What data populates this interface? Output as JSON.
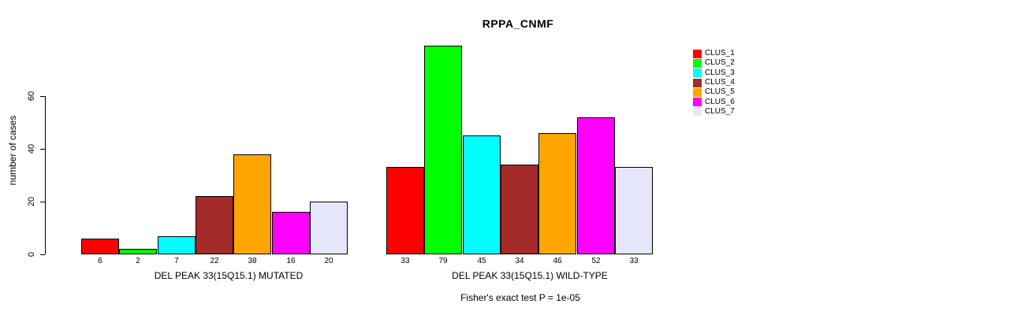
{
  "chart_data": {
    "type": "bar",
    "title": "RPPA_CNMF",
    "ylabel": "number of cases",
    "yticks": [
      0,
      20,
      40,
      60
    ],
    "ylim": [
      0,
      60
    ],
    "grid": false,
    "legend_position": "right",
    "groups": [
      {
        "label": "DEL PEAK 33(15Q15.1) MUTATED",
        "values": [
          6,
          2,
          7,
          22,
          38,
          16,
          20
        ]
      },
      {
        "label": "DEL PEAK 33(15Q15.1) WILD-TYPE",
        "values": [
          33,
          79,
          45,
          34,
          46,
          52,
          33
        ]
      }
    ],
    "series": [
      {
        "name": "CLUS_1",
        "color": "#FF0000"
      },
      {
        "name": "CLUS_2",
        "color": "#00FF00"
      },
      {
        "name": "CLUS_3",
        "color": "#00FFFF"
      },
      {
        "name": "CLUS_4",
        "color": "#A52A2A"
      },
      {
        "name": "CLUS_5",
        "color": "#FFA500"
      },
      {
        "name": "CLUS_6",
        "color": "#FF00FF"
      },
      {
        "name": "CLUS_7",
        "color": "#E6E6FA"
      }
    ],
    "footnote": "Fisher's exact test P = 1e-05"
  }
}
